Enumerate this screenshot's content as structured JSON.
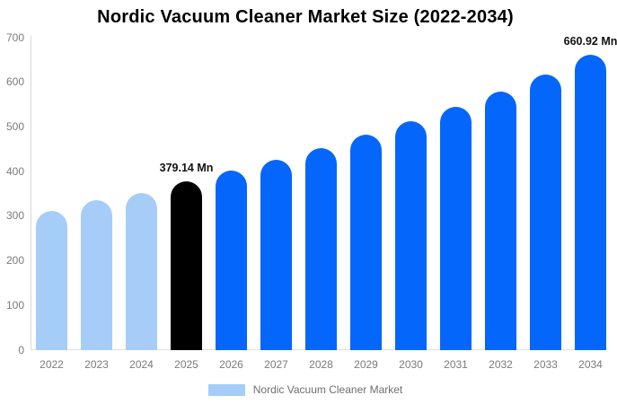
{
  "legend": {
    "label": "Nordic Vacuum Cleaner Market"
  },
  "colors": {
    "historical": "#a5cdf8",
    "highlight": "#000000",
    "forecast": "#0566fb",
    "axis_text": "#7b7b7b",
    "axis_line": "#d9d9d9",
    "annotation_text": "#111111",
    "legend_swatch": "#a5cdf8",
    "legend_text": "#6f6f6f",
    "title_text": "#000000",
    "background": "#ffffff"
  },
  "chart_data": {
    "type": "bar",
    "title": "Nordic Vacuum Cleaner Market Size (2022-2034)",
    "categories": [
      "2022",
      "2023",
      "2024",
      "2025",
      "2026",
      "2027",
      "2028",
      "2029",
      "2030",
      "2031",
      "2032",
      "2033",
      "2034"
    ],
    "values": [
      312,
      335,
      352,
      379.14,
      402,
      426,
      453,
      483,
      513,
      545,
      580,
      617,
      660.92
    ],
    "roles": [
      "historical",
      "historical",
      "historical",
      "highlight",
      "forecast",
      "forecast",
      "forecast",
      "forecast",
      "forecast",
      "forecast",
      "forecast",
      "forecast",
      "forecast"
    ],
    "annotations": [
      {
        "category": "2025",
        "text": "379.14 Mn"
      },
      {
        "category": "2034",
        "text": "660.92 Mn"
      }
    ],
    "xlabel": "",
    "ylabel": "",
    "ylim": [
      0,
      700
    ],
    "yticks": [
      0,
      100,
      200,
      300,
      400,
      500,
      600,
      700
    ],
    "grid": false,
    "legend_position": "bottom",
    "legend_entries": [
      "Nordic Vacuum Cleaner Market"
    ]
  }
}
